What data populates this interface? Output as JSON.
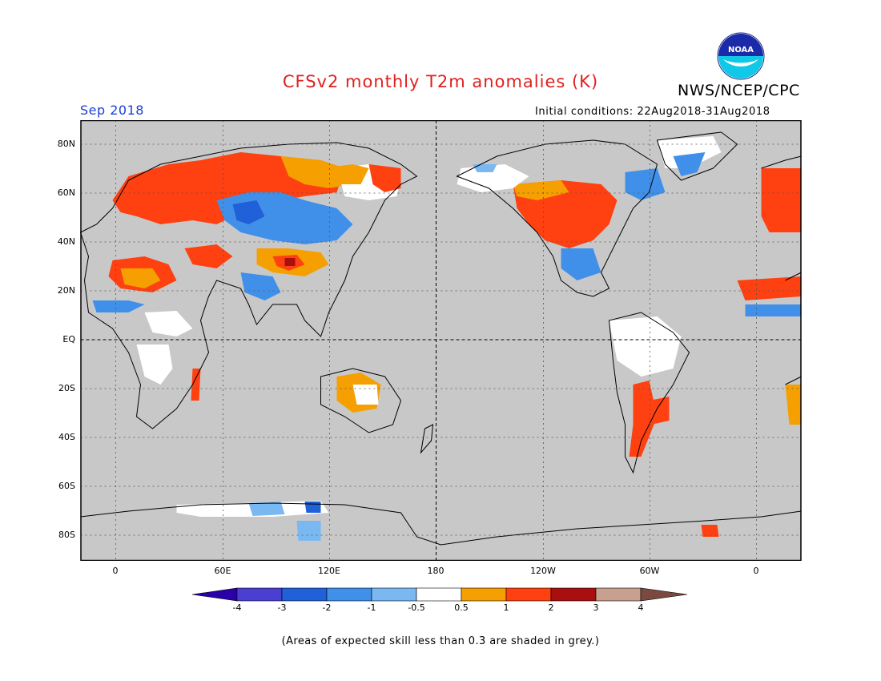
{
  "title": "CFSv2 monthly T2m anomalies (K)",
  "organization": "NWS/NCEP/CPC",
  "logo_text": "NOAA",
  "forecast_month": "Sep 2018",
  "initial_conditions": "Initial conditions: 22Aug2018-31Aug2018",
  "map": {
    "lat_labels": [
      "80N",
      "60N",
      "40N",
      "20N",
      "EQ",
      "20S",
      "40S",
      "60S",
      "80S"
    ],
    "lon_labels": [
      "0",
      "60E",
      "120E",
      "180",
      "120W",
      "60W",
      "0"
    ],
    "background_color": "#c8c8c8",
    "colorbar": {
      "labels": [
        "-4",
        "-3",
        "-2",
        "-1",
        "-0.5",
        "0.5",
        "1",
        "2",
        "3",
        "4"
      ],
      "colors": [
        "#2b00a8",
        "#4a3fd0",
        "#2060d8",
        "#4090ea",
        "#7ab8f2",
        "#ffffff",
        "#f5a000",
        "#ff4010",
        "#a81010",
        "#c8a090",
        "#7a4a40"
      ]
    }
  },
  "footnote": "(Areas of expected skill less than 0.3 are shaded in grey.)"
}
